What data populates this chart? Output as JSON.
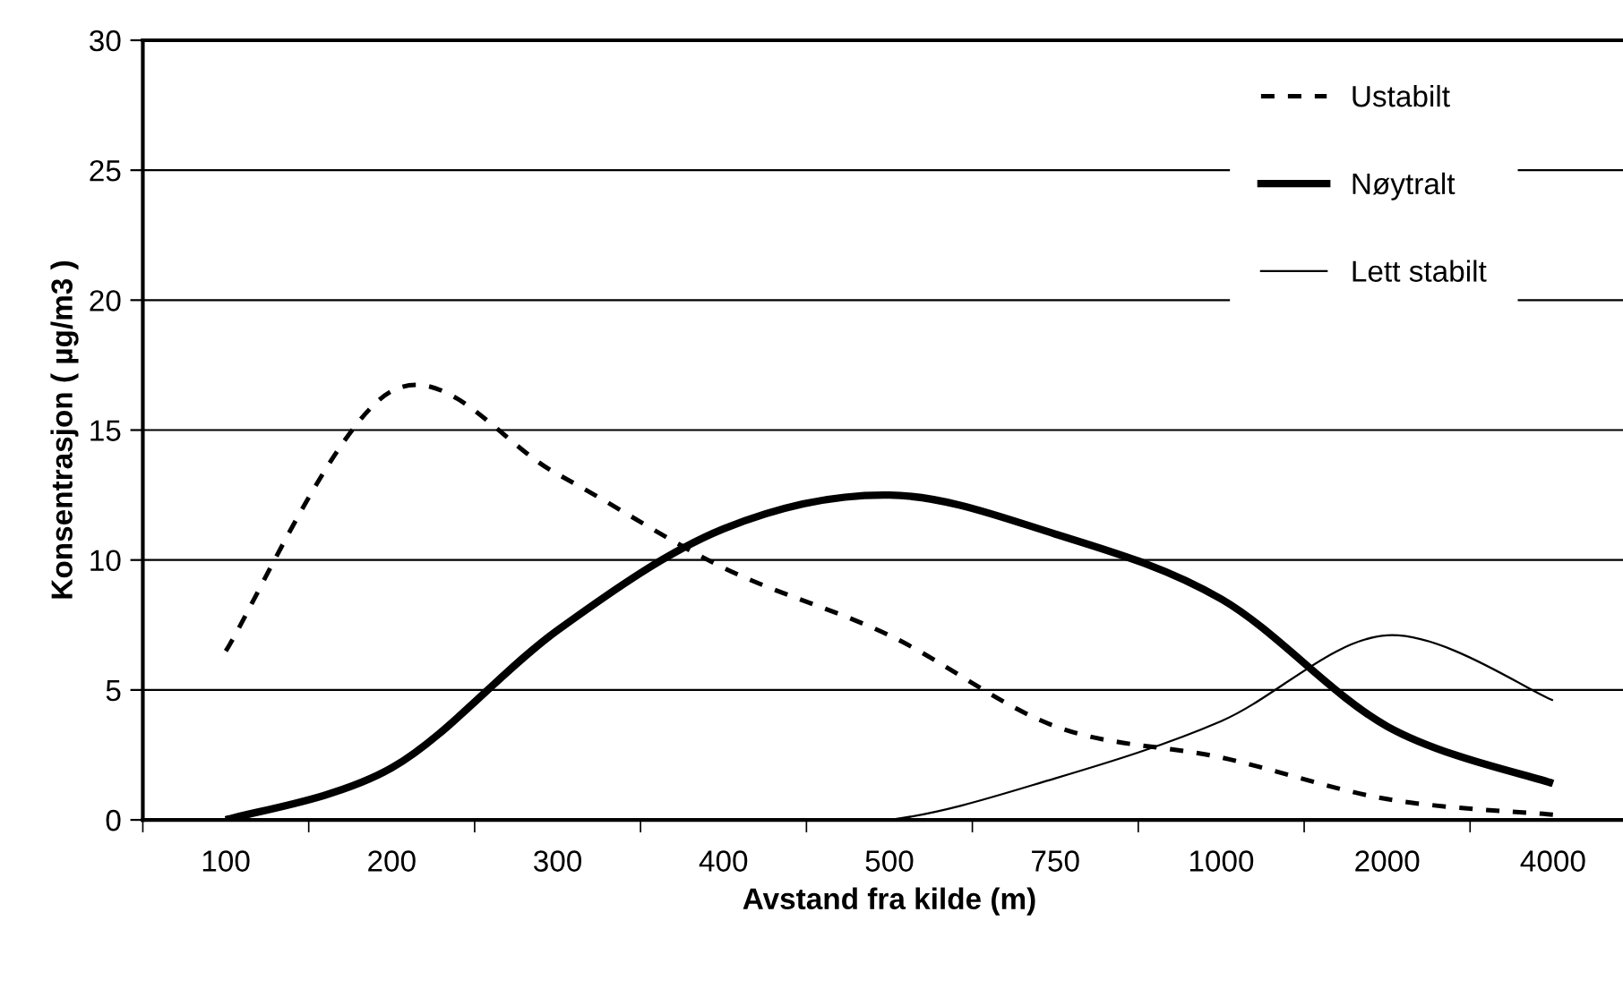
{
  "chart_data": {
    "type": "line",
    "xlabel": "Avstand fra kilde (m)",
    "ylabel": "Konsentrasjon ( µg/m3 )",
    "categories": [
      "100",
      "200",
      "300",
      "400",
      "500",
      "750",
      "1000",
      "2000",
      "4000"
    ],
    "series": [
      {
        "name": "Ustabilt",
        "color": "#000000",
        "line_style": "dashed",
        "values": [
          6.5,
          16.5,
          13.3,
          9.7,
          7.1,
          3.6,
          2.4,
          0.8,
          0.2
        ]
      },
      {
        "name": "Nøytralt",
        "color": "#000000",
        "line_style": "solid",
        "values": [
          0,
          2.0,
          7.3,
          11.2,
          12.5,
          11.0,
          8.5,
          3.6,
          1.4
        ]
      },
      {
        "name": "Lett stabilt",
        "color": "#000000",
        "line_style": "solid",
        "values": [
          0,
          0,
          0,
          0,
          0,
          1.6,
          3.8,
          7.1,
          4.6
        ]
      }
    ],
    "ylim": [
      0,
      30
    ],
    "yticks": [
      0,
      5,
      10,
      15,
      20,
      25,
      30
    ],
    "grid": "y",
    "legend": "top right",
    "marker": "none"
  }
}
